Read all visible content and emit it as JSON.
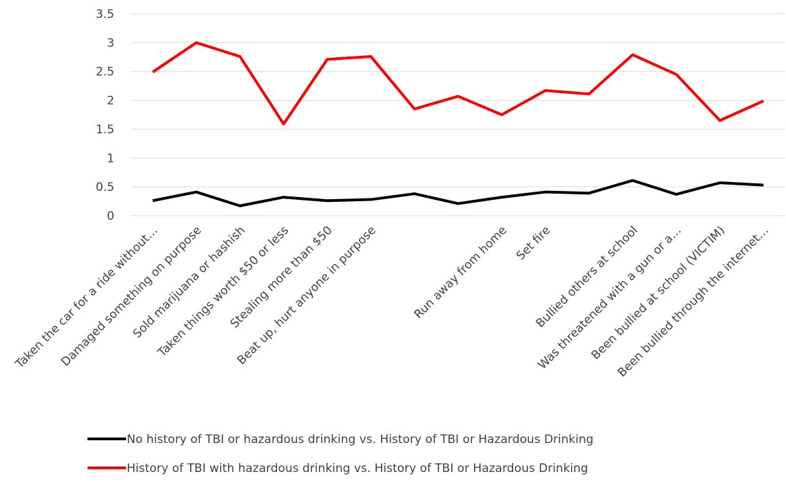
{
  "chart_data": {
    "type": "line",
    "categories": [
      "Taken the car for a ride without…",
      "Damaged something on purpose",
      "Sold marijuana or hashish",
      "Taken things worth $50 or less",
      "Stealing more than $50",
      "Beat up, hurt anyone in purpose",
      null,
      null,
      "Run away from home",
      "Set fire",
      null,
      "Bullied others at school",
      "Was threatened with a gun or a…",
      "Been bullied at school (VICTIM)",
      "Been bullied through the internet…"
    ],
    "series": [
      {
        "name": "No history of TBI or hazardous drinking vs.  History of TBI or Hazardous Drinking",
        "color": "#000000",
        "values": [
          0.26,
          0.41,
          0.17,
          0.32,
          0.26,
          0.28,
          0.38,
          0.21,
          0.32,
          0.41,
          0.39,
          0.61,
          0.37,
          0.57,
          0.53
        ]
      },
      {
        "name": "History of TBI with hazardous drinking vs. History of TBI or Hazardous Drinking",
        "color": "#ff0000",
        "values": [
          2.49,
          3.0,
          2.76,
          1.59,
          2.71,
          2.76,
          1.85,
          2.07,
          1.75,
          2.17,
          2.11,
          2.79,
          2.45,
          1.65,
          1.99
        ]
      }
    ],
    "ylim": [
      0,
      3.5
    ],
    "yticks": [
      0,
      0.5,
      1,
      1.5,
      2,
      2.5,
      3,
      3.5
    ],
    "grid": true
  }
}
